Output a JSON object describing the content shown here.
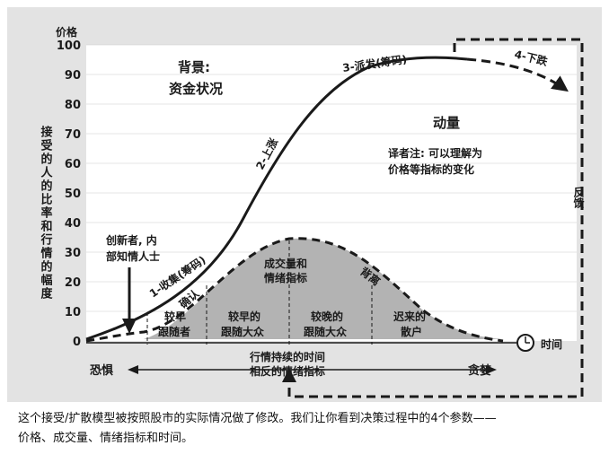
{
  "axes": {
    "y_label": "价格",
    "y_ticks": [
      "0",
      "10",
      "20",
      "30",
      "40",
      "50",
      "60",
      "70",
      "80",
      "90",
      "100"
    ],
    "y_side_label": "接受的人的比率和行情的幅度",
    "x_end_label": "时间",
    "left_label": "恐惧",
    "right_label": "贪婪"
  },
  "labels": {
    "background_line1": "背景:",
    "background_line2": "资金状况",
    "momentum": "动量",
    "translator_note_line1": "译者注: 可以理解为",
    "translator_note_line2": "价格等指标的变化",
    "feedback": "反馈",
    "phase_collect": "1-收集(筹码)",
    "phase_rise": "2-上涨",
    "phase_distribute": "3-派发(筹码)",
    "phase_fall": "4-下跌",
    "innovators_line1": "创新者, 内",
    "innovators_line2": "部知情人士",
    "confirm": "确认",
    "divergence": "背离",
    "early_followers_line1": "较早",
    "early_followers_line2": "跟随者",
    "early_majority_line1": "较早的",
    "early_majority_line2": "跟随大众",
    "late_majority_line1": "较晚的",
    "late_majority_line2": "跟随大众",
    "laggards_line1": "迟来的",
    "laggards_line2": "散户",
    "volume_line1": "成交量和",
    "volume_line2": "情绪指标",
    "opposite_line1": "行情持续的时间",
    "opposite_line2": "相反的情绪指标"
  },
  "caption": {
    "line1": "这个接受/扩散模型被按照股市的实际情况做了修改。我们让你看到决策过程中的4个参数——",
    "line2": "价格、成交量、情绪指标和时间。"
  },
  "colors": {
    "frame_bg": "#e3e3e3",
    "plot_bg": "#ffffff",
    "volume_fill": "#b3b3b3",
    "ink": "#1a1a1a"
  }
}
